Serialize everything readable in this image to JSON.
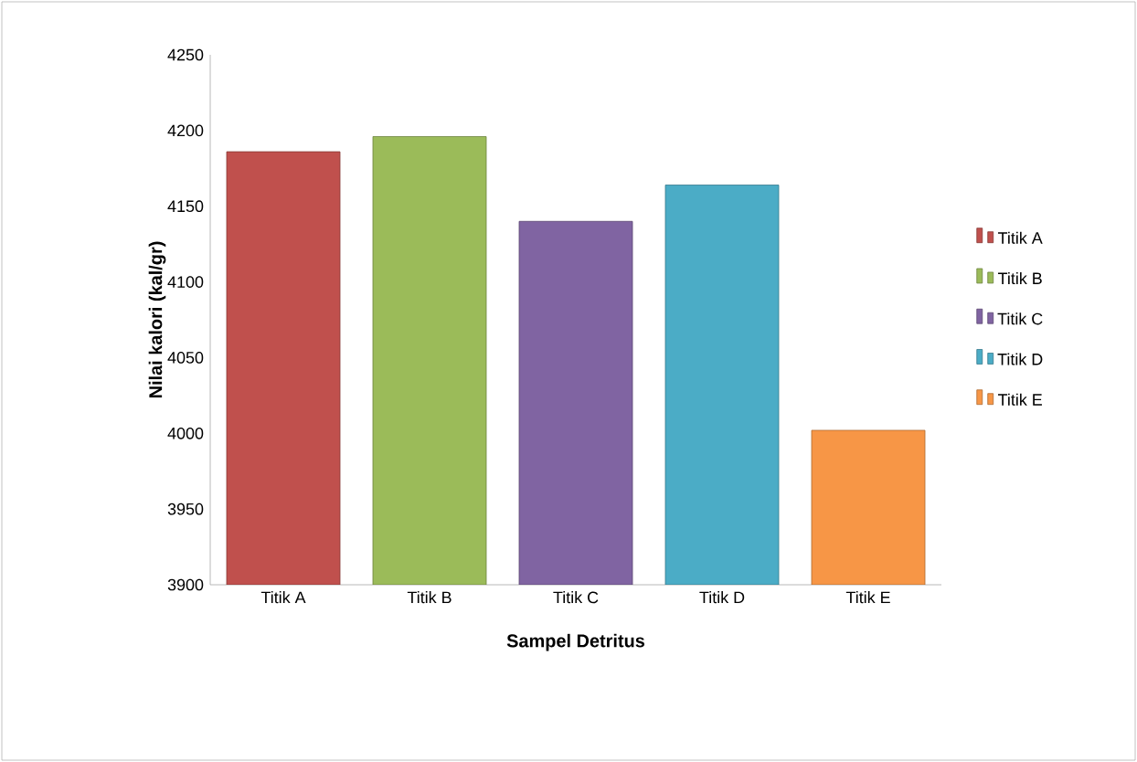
{
  "chart_data": {
    "type": "bar",
    "xlabel": "Sampel Detritus",
    "ylabel": "Nilai kalori (kal/gr)",
    "categories": [
      "Titik A",
      "Titik B",
      "Titik C",
      "Titik D",
      "Titik E"
    ],
    "series": [
      {
        "name": "Titik A",
        "color": "#c0504d",
        "values": [
          4186,
          null,
          null,
          null,
          null
        ]
      },
      {
        "name": "Titik B",
        "color": "#9bbb59",
        "values": [
          null,
          4196,
          null,
          null,
          null
        ]
      },
      {
        "name": "Titik C",
        "color": "#8064a2",
        "values": [
          null,
          null,
          4140,
          null,
          null
        ]
      },
      {
        "name": "Titik D",
        "color": "#4bacc6",
        "values": [
          null,
          null,
          null,
          4164,
          null
        ]
      },
      {
        "name": "Titik E",
        "color": "#f79646",
        "values": [
          null,
          null,
          null,
          null,
          4002
        ]
      }
    ],
    "ylim": [
      3900,
      4250
    ],
    "yticks": [
      3900,
      3950,
      4000,
      4050,
      4100,
      4150,
      4200,
      4250
    ],
    "legend": "right"
  }
}
